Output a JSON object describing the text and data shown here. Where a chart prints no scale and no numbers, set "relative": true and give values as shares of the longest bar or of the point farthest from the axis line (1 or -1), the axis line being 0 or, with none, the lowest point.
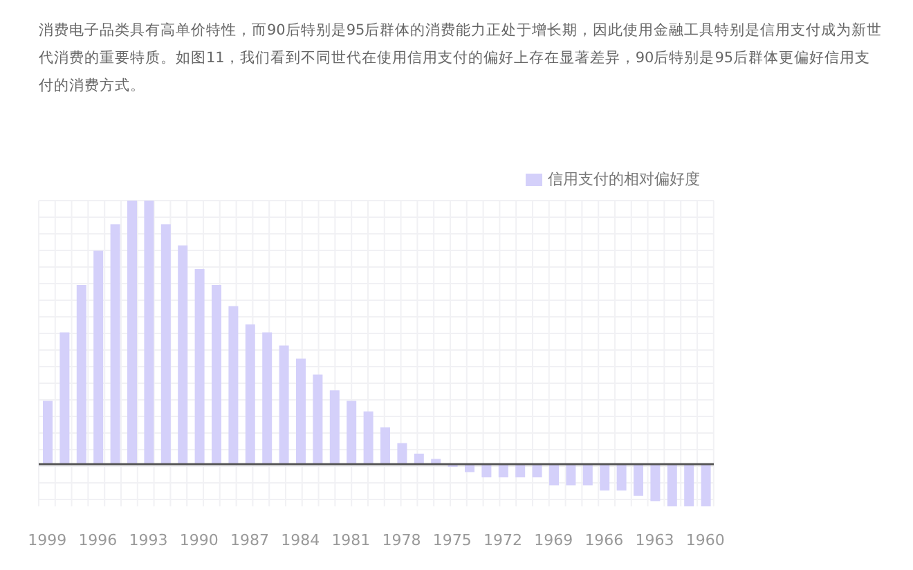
{
  "chart_data": {
    "type": "bar",
    "title": "消费电子品类具有高单价特性，而90后特别是95后群体的消费能力正处于增长期，因此使用金融工具特别是信用支付成为新世代消费的重要特质。如图11，我们看到不同世代在使用信用支付的偏好上存在显著差异，90后特别是95后群体更偏好信用支付的消费方式。",
    "categories": [
      "1999",
      null,
      null,
      "1996",
      null,
      null,
      "1993",
      null,
      null,
      "1990",
      null,
      null,
      "1987",
      null,
      null,
      "1984",
      null,
      null,
      "1981",
      null,
      null,
      "1978",
      null,
      null,
      "1975",
      null,
      null,
      "1972",
      null,
      null,
      "1969",
      null,
      null,
      "1966",
      null,
      null,
      "1963",
      null,
      null,
      "1960"
    ],
    "series": [
      {
        "name": "信用支付的相对偏好度",
        "color": "#d4d0fa",
        "values": [
          0.24,
          0.5,
          0.68,
          0.81,
          0.91,
          1,
          1,
          0.91,
          0.83,
          0.74,
          0.68,
          0.6,
          0.53,
          0.5,
          0.45,
          0.4,
          0.34,
          0.28,
          0.24,
          0.2,
          0.14,
          0.08,
          0.04,
          0.02,
          -0.01,
          -0.03,
          -0.05,
          -0.05,
          -0.05,
          -0.05,
          -0.08,
          -0.08,
          -0.08,
          -0.1,
          -0.1,
          -0.12,
          -0.14,
          -0.16,
          -0.16,
          -0.16
        ]
      }
    ],
    "relative": true,
    "grid": true,
    "legend": "top right"
  }
}
